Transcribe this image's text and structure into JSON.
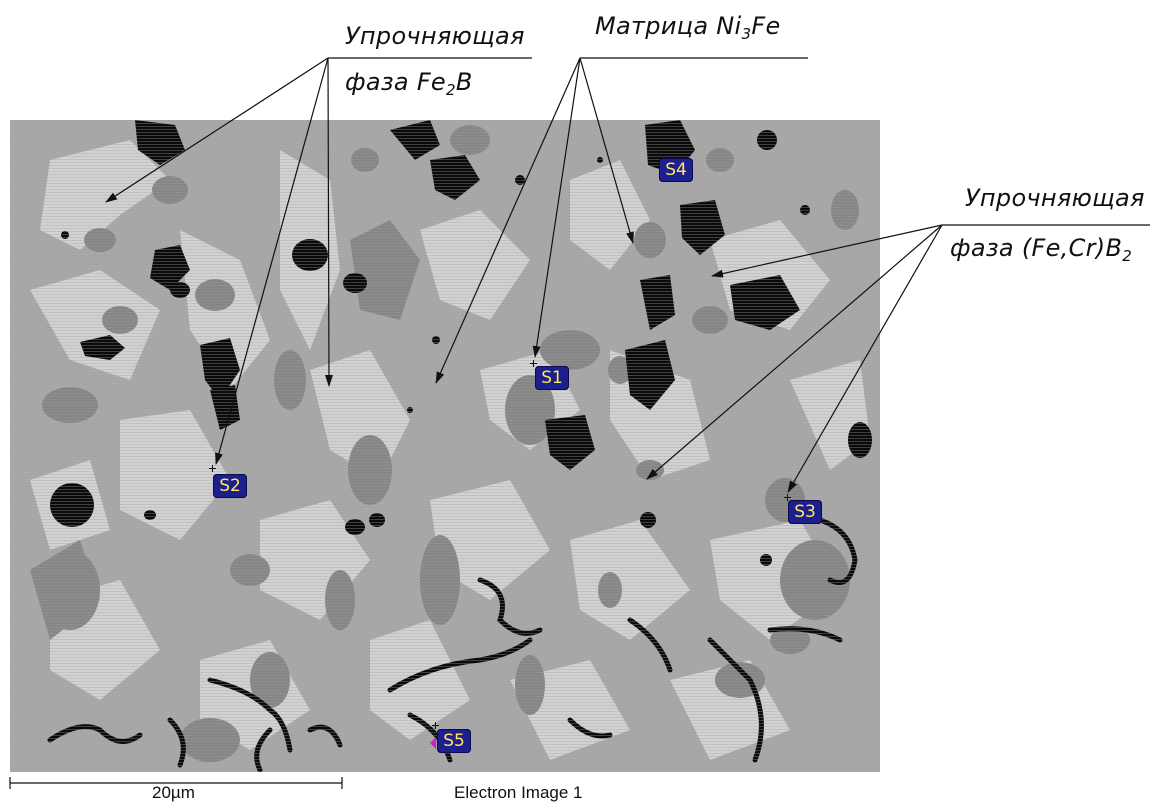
{
  "annotations": {
    "fe2b_line1": "Упрочняющая",
    "fe2b_line2": "фаза Fe",
    "fe2b_sub": "2",
    "fe2b_suffix": "B",
    "matrix_label": "Матрица Ni",
    "matrix_sub": "3",
    "matrix_suffix": "Fe",
    "fecrb_line1": "Упрочняющая",
    "fecrb_line2": "фаза (Fe,Cr)B",
    "fecrb_sub": "2"
  },
  "markers": {
    "s1": "S1",
    "s2": "S2",
    "s3": "S3",
    "s4": "S4",
    "s5": "S5"
  },
  "footer": {
    "scale_label": "20µm",
    "image_caption": "Electron Image 1"
  },
  "colors": {
    "matrix": "#a9a9a9",
    "light_phase": "#d0d0d0",
    "dark_phase": "#858585",
    "pore": "#0a0a0a",
    "marker_bg": "#1d1f8f",
    "marker_text": "#ffe85a"
  }
}
